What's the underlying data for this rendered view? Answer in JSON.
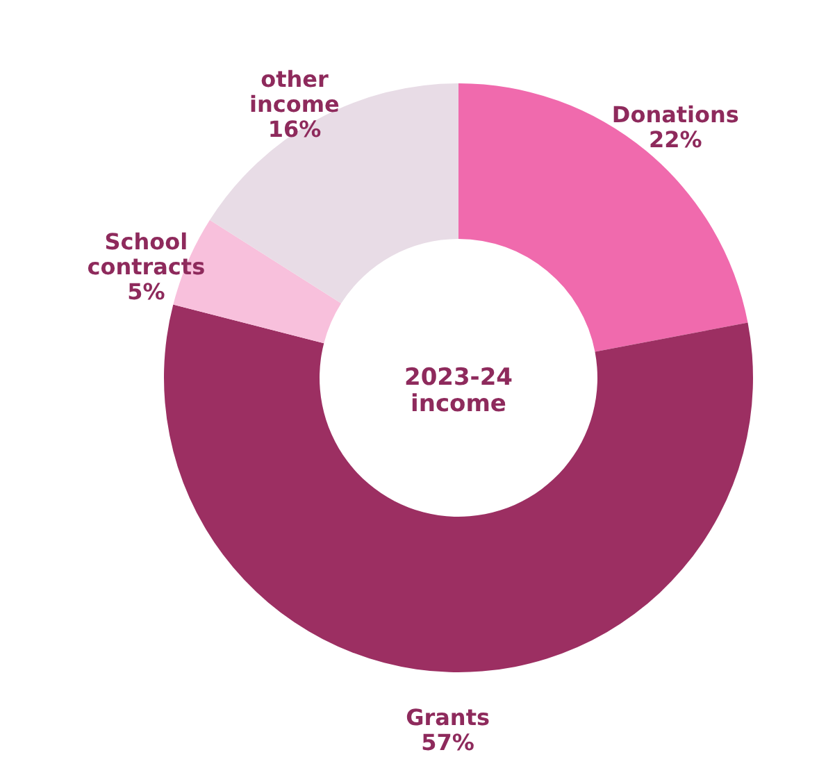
{
  "chart_data": {
    "type": "donut",
    "categories": [
      "Donations",
      "Grants",
      "School contracts",
      "other income"
    ],
    "values": [
      22,
      57,
      5,
      16
    ],
    "colors": [
      "#f06aad",
      "#9c2f62",
      "#f8c0dc",
      "#e8dce6"
    ],
    "value_labels": [
      "22%",
      "57%",
      "5%",
      "16%"
    ],
    "annotations": [
      "2023-24 income"
    ]
  }
}
